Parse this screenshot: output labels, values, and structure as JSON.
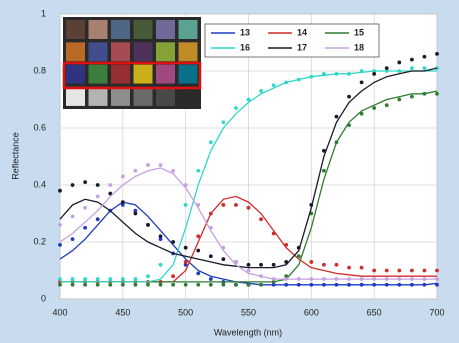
{
  "chart_data": {
    "type": "line",
    "x_label": "Wavelength (nm)",
    "y_label": "Reflectance",
    "x": [
      400,
      410,
      420,
      430,
      440,
      450,
      460,
      470,
      480,
      490,
      500,
      510,
      520,
      530,
      540,
      550,
      560,
      570,
      580,
      590,
      600,
      610,
      620,
      630,
      640,
      650,
      660,
      670,
      680,
      690,
      700
    ],
    "xlim": [
      400,
      700
    ],
    "xticks": [
      400,
      450,
      500,
      550,
      600,
      650,
      700
    ],
    "ylim": [
      0,
      1
    ],
    "yticks": [
      0,
      0.2,
      0.4,
      0.6,
      0.8,
      1
    ],
    "grid": true,
    "legend": "upper right",
    "series": [
      {
        "name": "13",
        "color": "#1f3cc0",
        "values": [
          0.14,
          0.17,
          0.21,
          0.26,
          0.31,
          0.34,
          0.33,
          0.29,
          0.24,
          0.19,
          0.14,
          0.1,
          0.08,
          0.07,
          0.06,
          0.055,
          0.05,
          0.05,
          0.05,
          0.05,
          0.05,
          0.05,
          0.05,
          0.05,
          0.05,
          0.05,
          0.05,
          0.05,
          0.05,
          0.05,
          0.055
        ],
        "points": [
          0.19,
          0.21,
          0.25,
          0.28,
          0.31,
          0.33,
          0.31,
          0.26,
          0.21,
          0.16,
          0.12,
          0.09,
          0.07,
          0.06,
          0.05,
          0.05,
          0.05,
          0.05,
          0.05,
          0.05,
          0.05,
          0.05,
          0.05,
          0.05,
          0.05,
          0.05,
          0.05,
          0.05,
          0.05,
          0.05,
          0.05
        ]
      },
      {
        "name": "14",
        "color": "#d42a2a",
        "values": [
          0.06,
          0.06,
          0.06,
          0.06,
          0.06,
          0.06,
          0.06,
          0.06,
          0.06,
          0.06,
          0.1,
          0.2,
          0.3,
          0.35,
          0.36,
          0.34,
          0.3,
          0.24,
          0.18,
          0.14,
          0.11,
          0.1,
          0.09,
          0.085,
          0.08,
          0.08,
          0.08,
          0.08,
          0.08,
          0.08,
          0.08
        ],
        "points": [
          0.06,
          0.06,
          0.06,
          0.06,
          0.06,
          0.06,
          0.06,
          0.06,
          0.06,
          0.08,
          0.13,
          0.22,
          0.3,
          0.33,
          0.33,
          0.32,
          0.28,
          0.23,
          0.19,
          0.15,
          0.13,
          0.12,
          0.12,
          0.11,
          0.11,
          0.1,
          0.1,
          0.1,
          0.1,
          0.1,
          0.1
        ]
      },
      {
        "name": "15",
        "color": "#2e7d32",
        "values": [
          0.06,
          0.06,
          0.06,
          0.06,
          0.06,
          0.06,
          0.06,
          0.06,
          0.06,
          0.06,
          0.06,
          0.06,
          0.06,
          0.06,
          0.06,
          0.06,
          0.06,
          0.06,
          0.07,
          0.12,
          0.25,
          0.42,
          0.55,
          0.62,
          0.66,
          0.68,
          0.7,
          0.71,
          0.72,
          0.72,
          0.73
        ],
        "points": [
          0.05,
          0.05,
          0.05,
          0.05,
          0.05,
          0.05,
          0.05,
          0.05,
          0.05,
          0.05,
          0.05,
          0.05,
          0.05,
          0.05,
          0.05,
          0.05,
          0.05,
          0.06,
          0.08,
          0.15,
          0.3,
          0.45,
          0.55,
          0.61,
          0.65,
          0.67,
          0.68,
          0.7,
          0.71,
          0.72,
          0.72
        ]
      },
      {
        "name": "16",
        "color": "#2fd8c8",
        "values": [
          0.06,
          0.06,
          0.06,
          0.06,
          0.06,
          0.06,
          0.06,
          0.06,
          0.07,
          0.12,
          0.25,
          0.4,
          0.52,
          0.6,
          0.65,
          0.69,
          0.72,
          0.74,
          0.76,
          0.77,
          0.78,
          0.785,
          0.79,
          0.79,
          0.795,
          0.8,
          0.8,
          0.8,
          0.8,
          0.8,
          0.8
        ],
        "points": [
          0.07,
          0.07,
          0.07,
          0.07,
          0.07,
          0.07,
          0.07,
          0.08,
          0.12,
          0.2,
          0.33,
          0.45,
          0.55,
          0.62,
          0.67,
          0.7,
          0.73,
          0.75,
          0.76,
          0.77,
          0.78,
          0.79,
          0.79,
          0.79,
          0.8,
          0.8,
          0.8,
          0.8,
          0.81,
          0.81,
          0.81
        ]
      },
      {
        "name": "17",
        "color": "#1a1a2a",
        "values": [
          0.28,
          0.33,
          0.35,
          0.34,
          0.31,
          0.27,
          0.23,
          0.2,
          0.18,
          0.16,
          0.15,
          0.14,
          0.13,
          0.12,
          0.115,
          0.11,
          0.11,
          0.11,
          0.12,
          0.17,
          0.32,
          0.5,
          0.62,
          0.69,
          0.73,
          0.76,
          0.78,
          0.79,
          0.8,
          0.8,
          0.81
        ],
        "points": [
          0.38,
          0.4,
          0.41,
          0.4,
          0.37,
          0.34,
          0.3,
          0.26,
          0.22,
          0.2,
          0.18,
          0.17,
          0.15,
          0.14,
          0.13,
          0.12,
          0.12,
          0.12,
          0.13,
          0.18,
          0.33,
          0.52,
          0.64,
          0.71,
          0.76,
          0.79,
          0.81,
          0.83,
          0.84,
          0.85,
          0.86
        ]
      },
      {
        "name": "18",
        "color": "#c6a0e0",
        "values": [
          0.2,
          0.23,
          0.27,
          0.31,
          0.36,
          0.4,
          0.43,
          0.45,
          0.46,
          0.44,
          0.39,
          0.32,
          0.24,
          0.17,
          0.12,
          0.09,
          0.08,
          0.07,
          0.07,
          0.07,
          0.07,
          0.07,
          0.07,
          0.07,
          0.07,
          0.07,
          0.07,
          0.07,
          0.07,
          0.07,
          0.07
        ],
        "points": [
          0.26,
          0.29,
          0.32,
          0.36,
          0.4,
          0.43,
          0.45,
          0.47,
          0.47,
          0.45,
          0.4,
          0.33,
          0.25,
          0.18,
          0.13,
          0.1,
          0.08,
          0.07,
          0.07,
          0.07,
          0.07,
          0.07,
          0.07,
          0.07,
          0.07,
          0.07,
          0.07,
          0.07,
          0.07,
          0.07,
          0.07
        ]
      }
    ]
  }
}
